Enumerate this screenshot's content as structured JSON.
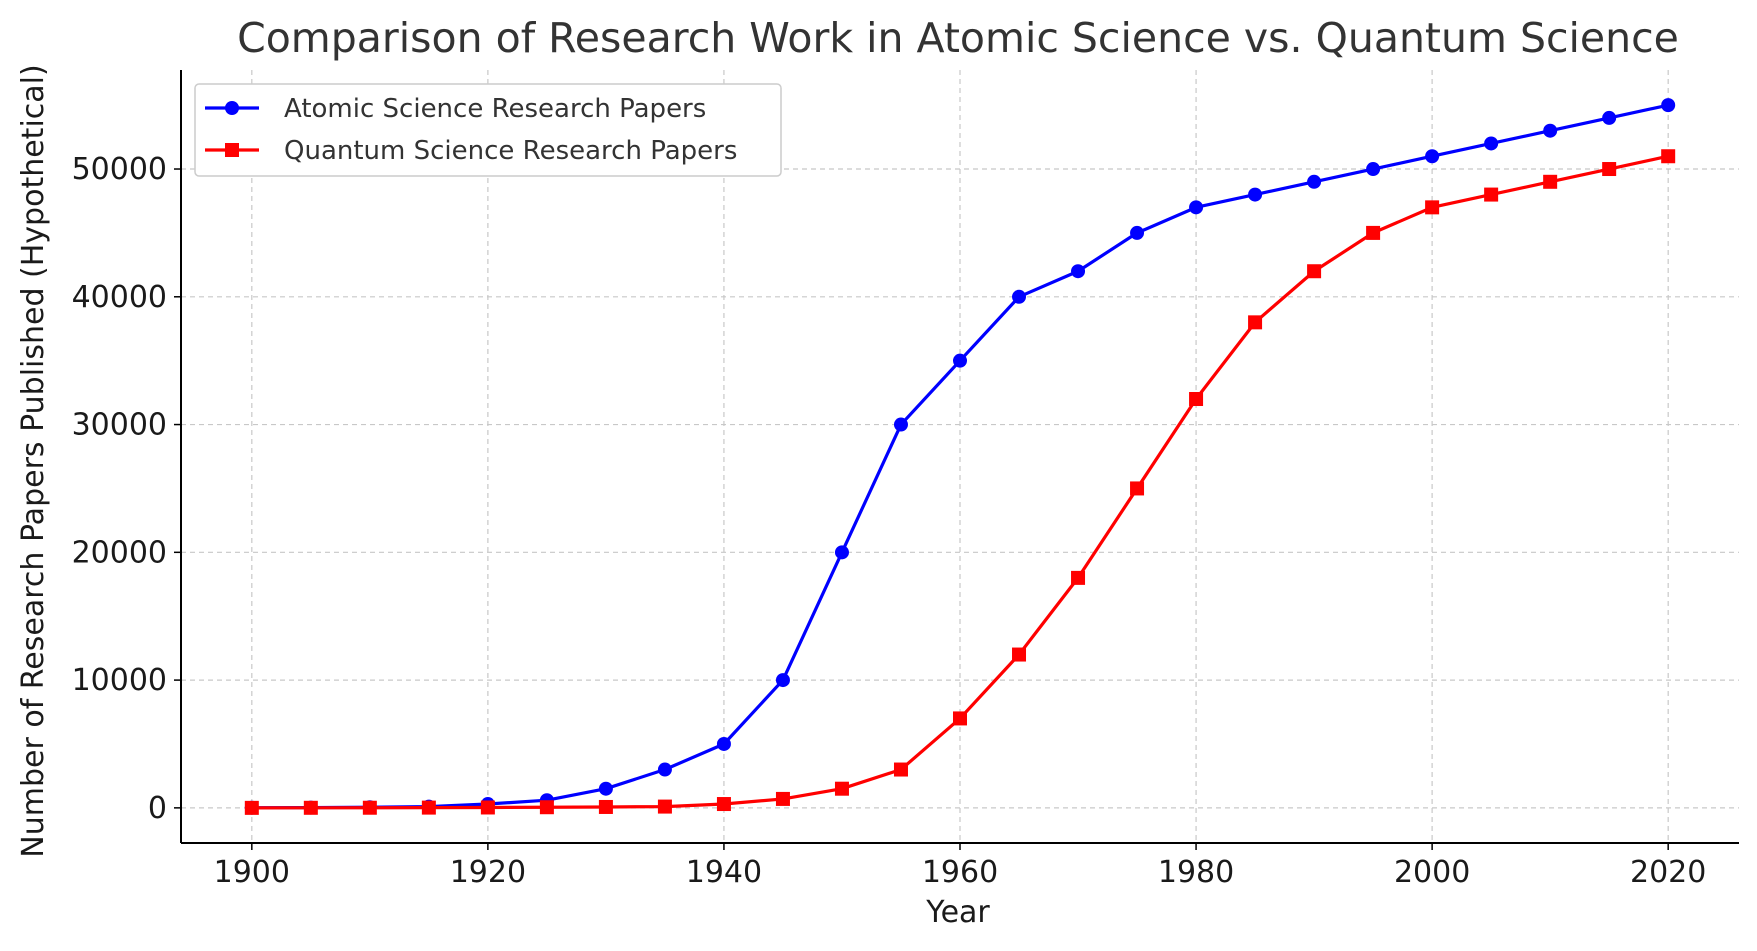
{
  "chart_data": {
    "type": "line",
    "title": "Comparison of Research Work in Atomic Science vs. Quantum Science",
    "xlabel": "Year",
    "ylabel": "Number of Research Papers Published (Hypothetical)",
    "xlim": [
      1894,
      2026
    ],
    "ylim": [
      -2750,
      57750
    ],
    "x_ticks": [
      1900,
      1920,
      1940,
      1960,
      1980,
      2000,
      2020
    ],
    "y_ticks": [
      0,
      10000,
      20000,
      30000,
      40000,
      50000
    ],
    "grid": true,
    "legend_position": "upper left",
    "x": [
      1900,
      1905,
      1910,
      1915,
      1920,
      1925,
      1930,
      1935,
      1940,
      1945,
      1950,
      1955,
      1960,
      1965,
      1970,
      1975,
      1980,
      1985,
      1990,
      1995,
      2000,
      2005,
      2010,
      2015,
      2020
    ],
    "series": [
      {
        "name": "Atomic Science Research Papers",
        "color": "#0000ff",
        "marker": "circle",
        "values": [
          10,
          20,
          50,
          100,
          300,
          600,
          1500,
          3000,
          5000,
          10000,
          20000,
          30000,
          35000,
          40000,
          42000,
          45000,
          47000,
          48000,
          49000,
          50000,
          51000,
          52000,
          53000,
          54000,
          55000
        ]
      },
      {
        "name": "Quantum Science Research Papers",
        "color": "#ff0000",
        "marker": "square",
        "values": [
          0,
          5,
          10,
          20,
          30,
          50,
          70,
          100,
          300,
          700,
          1500,
          3000,
          7000,
          12000,
          18000,
          25000,
          32000,
          38000,
          42000,
          45000,
          47000,
          48000,
          49000,
          50000,
          51000
        ]
      }
    ]
  }
}
